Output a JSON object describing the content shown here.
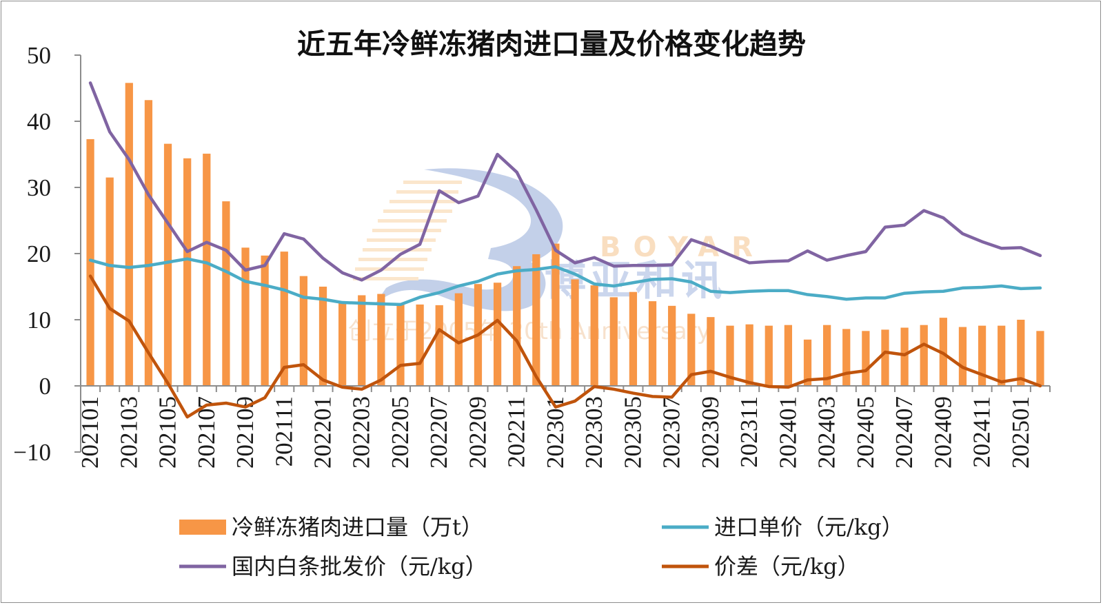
{
  "chart_data": {
    "type": "bar",
    "title": "近五年冷鲜冻猪肉进口量及价格变化趋势",
    "xlabel": "",
    "ylabel": "",
    "ylim": [
      -10,
      50
    ],
    "yticks": [
      50,
      40,
      30,
      20,
      10,
      0,
      -10
    ],
    "ytick_labels": [
      "50",
      "40",
      "30",
      "20",
      "10",
      "0",
      "−10"
    ],
    "grid": false,
    "legend_placement": "bottom",
    "categories": [
      "202101",
      "202102",
      "202103",
      "202104",
      "202105",
      "202106",
      "202107",
      "202108",
      "202109",
      "202110",
      "202111",
      "202112",
      "202201",
      "202202",
      "202203",
      "202204",
      "202205",
      "202206",
      "202207",
      "202208",
      "202209",
      "202210",
      "202211",
      "202212",
      "202301",
      "202302",
      "202303",
      "202304",
      "202305",
      "202306",
      "202307",
      "202308",
      "202309",
      "202310",
      "202311",
      "202312",
      "202401",
      "202402",
      "202403",
      "202404",
      "202405",
      "202406",
      "202407",
      "202408",
      "202409",
      "202410",
      "202411",
      "202412",
      "202501",
      "202502"
    ],
    "tick_labels": [
      "202101",
      "202103",
      "202105",
      "202107",
      "202109",
      "202111",
      "202201",
      "202203",
      "202205",
      "202207",
      "202209",
      "202211",
      "202301",
      "202303",
      "202305",
      "202307",
      "202309",
      "202311",
      "202401",
      "202403",
      "202405",
      "202407",
      "202409",
      "202411",
      "202501"
    ],
    "series": [
      {
        "name": "冷鲜冻猪肉进口量（万t）",
        "type": "bar",
        "color": "#f79646",
        "values": [
          37.3,
          31.5,
          45.8,
          43.2,
          36.6,
          34.4,
          35.1,
          27.9,
          20.9,
          19.7,
          20.3,
          16.6,
          15.0,
          12.5,
          13.7,
          13.9,
          12.3,
          12.3,
          12.2,
          14.0,
          15.4,
          15.6,
          18.1,
          19.9,
          21.5,
          16.1,
          15.2,
          13.4,
          14.2,
          12.8,
          12.1,
          10.9,
          10.4,
          9.1,
          9.3,
          9.1,
          9.2,
          7.0,
          9.2,
          8.6,
          8.3,
          8.5,
          8.8,
          9.2,
          10.3,
          8.9,
          9.1,
          9.1,
          10.0,
          8.3
        ]
      },
      {
        "name": "进口单价（元/kg）",
        "type": "line",
        "color": "#4bacc6",
        "values": [
          19.0,
          18.2,
          17.9,
          18.2,
          18.7,
          19.2,
          18.6,
          17.3,
          15.8,
          15.2,
          14.5,
          13.4,
          13.1,
          12.6,
          12.5,
          12.4,
          12.3,
          13.4,
          14.1,
          15.1,
          15.8,
          16.9,
          17.4,
          17.6,
          18.0,
          16.9,
          15.4,
          15.1,
          15.6,
          16.1,
          16.2,
          15.7,
          14.3,
          14.1,
          14.3,
          14.4,
          14.4,
          13.8,
          13.5,
          13.1,
          13.3,
          13.3,
          14.0,
          14.2,
          14.3,
          14.8,
          14.9,
          15.1,
          14.7,
          14.8
        ]
      },
      {
        "name": "国内白条批发价（元/kg）",
        "type": "line",
        "color": "#8064a2",
        "values": [
          45.8,
          38.4,
          34.2,
          28.9,
          24.6,
          20.3,
          21.7,
          20.5,
          17.5,
          18.2,
          23.0,
          22.2,
          19.3,
          17.1,
          16.0,
          17.5,
          19.9,
          21.4,
          29.5,
          27.7,
          28.7,
          35.0,
          32.3,
          26.6,
          20.5,
          18.6,
          19.4,
          18.1,
          18.2,
          18.2,
          18.3,
          22.1,
          21.1,
          19.8,
          18.6,
          18.8,
          18.9,
          20.4,
          19.0,
          19.7,
          20.3,
          24.0,
          24.3,
          26.5,
          25.4,
          23.0,
          21.8,
          20.8,
          20.9,
          19.7
        ]
      },
      {
        "name": "价差（元/kg）",
        "type": "line",
        "color": "#c0540c",
        "values": [
          16.6,
          11.7,
          9.8,
          5.0,
          0.4,
          -4.7,
          -2.9,
          -2.6,
          -3.2,
          -1.8,
          2.8,
          3.2,
          0.9,
          -0.2,
          -0.5,
          0.9,
          3.1,
          3.4,
          8.5,
          6.5,
          7.7,
          9.9,
          6.8,
          1.4,
          -3.2,
          -2.3,
          -0.1,
          -0.5,
          -1.1,
          -1.6,
          -1.7,
          1.7,
          2.2,
          1.3,
          0.5,
          -0.1,
          -0.2,
          0.9,
          1.1,
          1.9,
          2.3,
          5.1,
          4.7,
          6.3,
          4.9,
          2.8,
          1.7,
          0.6,
          1.1,
          0.0
        ]
      }
    ]
  },
  "watermark": {
    "brand_en": "BOYAR",
    "brand_cn": "博亚和讯",
    "slogan": "创立于2005年 20th Anniversary"
  }
}
